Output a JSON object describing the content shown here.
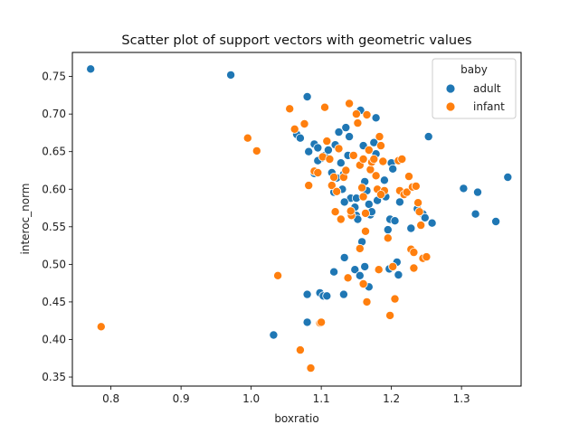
{
  "chart_data": {
    "type": "scatter",
    "title": "Scatter plot of support vectors with geometric values",
    "xlabel": "boxratio",
    "ylabel": "interoc_norm",
    "xlim": [
      0.745,
      1.385
    ],
    "ylim": [
      0.338,
      0.782
    ],
    "xticks": [
      0.8,
      0.9,
      1.0,
      1.1,
      1.2,
      1.3
    ],
    "xtick_labels": [
      "0.8",
      "0.9",
      "1.0",
      "1.1",
      "1.2",
      "1.3"
    ],
    "yticks": [
      0.35,
      0.4,
      0.45,
      0.5,
      0.55,
      0.6,
      0.65,
      0.7,
      0.75
    ],
    "ytick_labels": [
      "0.35",
      "0.40",
      "0.45",
      "0.50",
      "0.55",
      "0.60",
      "0.65",
      "0.70",
      "0.75"
    ],
    "grid": false,
    "legend": {
      "title": "baby",
      "placement": "top-right"
    },
    "series": [
      {
        "name": "adult",
        "color": "#1f77b4",
        "points": [
          [
            0.771,
            0.76
          ],
          [
            0.971,
            0.752
          ],
          [
            1.032,
            0.406
          ],
          [
            1.08,
            0.723
          ],
          [
            1.065,
            0.673
          ],
          [
            1.07,
            0.668
          ],
          [
            1.082,
            0.65
          ],
          [
            1.09,
            0.66
          ],
          [
            1.095,
            0.655
          ],
          [
            1.1,
            0.641
          ],
          [
            1.105,
            0.645
          ],
          [
            1.11,
            0.652
          ],
          [
            1.115,
            0.622
          ],
          [
            1.118,
            0.596
          ],
          [
            1.122,
            0.615
          ],
          [
            1.125,
            0.676
          ],
          [
            1.128,
            0.635
          ],
          [
            1.132,
            0.62
          ],
          [
            1.13,
            0.6
          ],
          [
            1.135,
            0.682
          ],
          [
            1.138,
            0.645
          ],
          [
            1.14,
            0.67
          ],
          [
            1.142,
            0.588
          ],
          [
            1.145,
            0.57
          ],
          [
            1.148,
            0.576
          ],
          [
            1.15,
            0.565
          ],
          [
            1.152,
            0.56
          ],
          [
            1.156,
            0.705
          ],
          [
            1.16,
            0.658
          ],
          [
            1.162,
            0.61
          ],
          [
            1.165,
            0.598
          ],
          [
            1.168,
            0.58
          ],
          [
            1.17,
            0.566
          ],
          [
            1.172,
            0.57
          ],
          [
            1.175,
            0.662
          ],
          [
            1.178,
            0.647
          ],
          [
            1.18,
            0.585
          ],
          [
            1.182,
            0.598
          ],
          [
            1.185,
            0.595
          ],
          [
            1.19,
            0.612
          ],
          [
            1.192,
            0.59
          ],
          [
            1.195,
            0.546
          ],
          [
            1.198,
            0.56
          ],
          [
            1.2,
            0.635
          ],
          [
            1.202,
            0.627
          ],
          [
            1.205,
            0.558
          ],
          [
            1.208,
            0.503
          ],
          [
            1.21,
            0.486
          ],
          [
            1.212,
            0.583
          ],
          [
            1.178,
            0.695
          ],
          [
            1.148,
            0.493
          ],
          [
            1.155,
            0.485
          ],
          [
            1.162,
            0.497
          ],
          [
            1.168,
            0.47
          ],
          [
            1.133,
            0.509
          ],
          [
            1.118,
            0.49
          ],
          [
            1.098,
            0.462
          ],
          [
            1.103,
            0.458
          ],
          [
            1.08,
            0.46
          ],
          [
            1.108,
            0.458
          ],
          [
            1.132,
            0.46
          ],
          [
            1.08,
            0.423
          ],
          [
            1.237,
            0.574
          ],
          [
            1.245,
            0.567
          ],
          [
            1.248,
            0.562
          ],
          [
            1.253,
            0.67
          ],
          [
            1.258,
            0.555
          ],
          [
            1.228,
            0.548
          ],
          [
            1.303,
            0.601
          ],
          [
            1.32,
            0.567
          ],
          [
            1.323,
            0.596
          ],
          [
            1.349,
            0.557
          ],
          [
            1.366,
            0.616
          ],
          [
            1.09,
            0.621
          ],
          [
            1.095,
            0.638
          ],
          [
            1.12,
            0.659
          ],
          [
            1.158,
            0.53
          ],
          [
            1.15,
            0.588
          ],
          [
            1.133,
            0.583
          ],
          [
            1.197,
            0.494
          ]
        ]
      },
      {
        "name": "infant",
        "color": "#ff7f0e",
        "points": [
          [
            0.786,
            0.417
          ],
          [
            0.995,
            0.668
          ],
          [
            1.008,
            0.651
          ],
          [
            1.038,
            0.485
          ],
          [
            1.055,
            0.707
          ],
          [
            1.062,
            0.68
          ],
          [
            1.07,
            0.386
          ],
          [
            1.076,
            0.687
          ],
          [
            1.082,
            0.605
          ],
          [
            1.085,
            0.362
          ],
          [
            1.09,
            0.624
          ],
          [
            1.095,
            0.622
          ],
          [
            1.098,
            0.422
          ],
          [
            1.1,
            0.423
          ],
          [
            1.102,
            0.643
          ],
          [
            1.105,
            0.709
          ],
          [
            1.108,
            0.664
          ],
          [
            1.112,
            0.64
          ],
          [
            1.115,
            0.605
          ],
          [
            1.12,
            0.57
          ],
          [
            1.125,
            0.654
          ],
          [
            1.128,
            0.56
          ],
          [
            1.132,
            0.616
          ],
          [
            1.135,
            0.625
          ],
          [
            1.138,
            0.482
          ],
          [
            1.14,
            0.714
          ],
          [
            1.143,
            0.565
          ],
          [
            1.146,
            0.645
          ],
          [
            1.15,
            0.7
          ],
          [
            1.152,
            0.688
          ],
          [
            1.155,
            0.632
          ],
          [
            1.158,
            0.602
          ],
          [
            1.16,
            0.64
          ],
          [
            1.163,
            0.568
          ],
          [
            1.165,
            0.699
          ],
          [
            1.168,
            0.652
          ],
          [
            1.17,
            0.626
          ],
          [
            1.172,
            0.636
          ],
          [
            1.175,
            0.64
          ],
          [
            1.178,
            0.618
          ],
          [
            1.18,
            0.6
          ],
          [
            1.183,
            0.67
          ],
          [
            1.185,
            0.658
          ],
          [
            1.188,
            0.637
          ],
          [
            1.19,
            0.598
          ],
          [
            1.195,
            0.535
          ],
          [
            1.198,
            0.432
          ],
          [
            1.202,
            0.497
          ],
          [
            1.205,
            0.454
          ],
          [
            1.21,
            0.638
          ],
          [
            1.212,
            0.598
          ],
          [
            1.215,
            0.64
          ],
          [
            1.218,
            0.593
          ],
          [
            1.222,
            0.596
          ],
          [
            1.225,
            0.617
          ],
          [
            1.228,
            0.52
          ],
          [
            1.23,
            0.603
          ],
          [
            1.232,
            0.516
          ],
          [
            1.235,
            0.604
          ],
          [
            1.238,
            0.582
          ],
          [
            1.24,
            0.57
          ],
          [
            1.242,
            0.552
          ],
          [
            1.245,
            0.508
          ],
          [
            1.25,
            0.51
          ],
          [
            1.232,
            0.495
          ],
          [
            1.182,
            0.493
          ],
          [
            1.165,
            0.45
          ],
          [
            1.16,
            0.474
          ],
          [
            1.155,
            0.521
          ],
          [
            1.142,
            0.571
          ],
          [
            1.163,
            0.544
          ],
          [
            1.122,
            0.597
          ],
          [
            1.118,
            0.616
          ],
          [
            1.16,
            0.59
          ],
          [
            1.185,
            0.593
          ]
        ]
      }
    ]
  }
}
